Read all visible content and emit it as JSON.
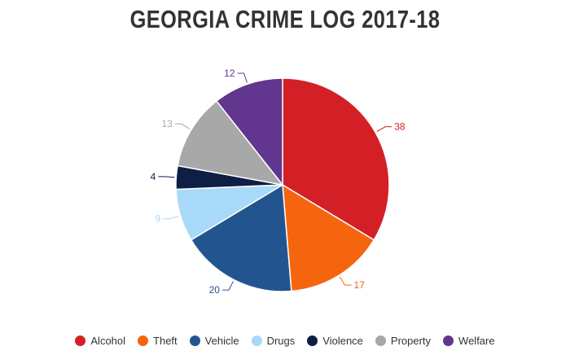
{
  "chart_data": {
    "type": "pie",
    "title": "GEORGIA CRIME LOG 2017-18",
    "slices": [
      {
        "label": "Alcohol",
        "value": 38,
        "color": "#d32026"
      },
      {
        "label": "Theft",
        "value": 17,
        "color": "#f5650e"
      },
      {
        "label": "Vehicle",
        "value": 20,
        "color": "#225590"
      },
      {
        "label": "Drugs",
        "value": 9,
        "color": "#a9d9f8"
      },
      {
        "label": "Violence",
        "value": 4,
        "color": "#0e1e45"
      },
      {
        "label": "Property",
        "value": 13,
        "color": "#a8a8a8"
      },
      {
        "label": "Welfare",
        "value": 12,
        "color": "#62368f"
      }
    ],
    "legend_position": "bottom"
  }
}
